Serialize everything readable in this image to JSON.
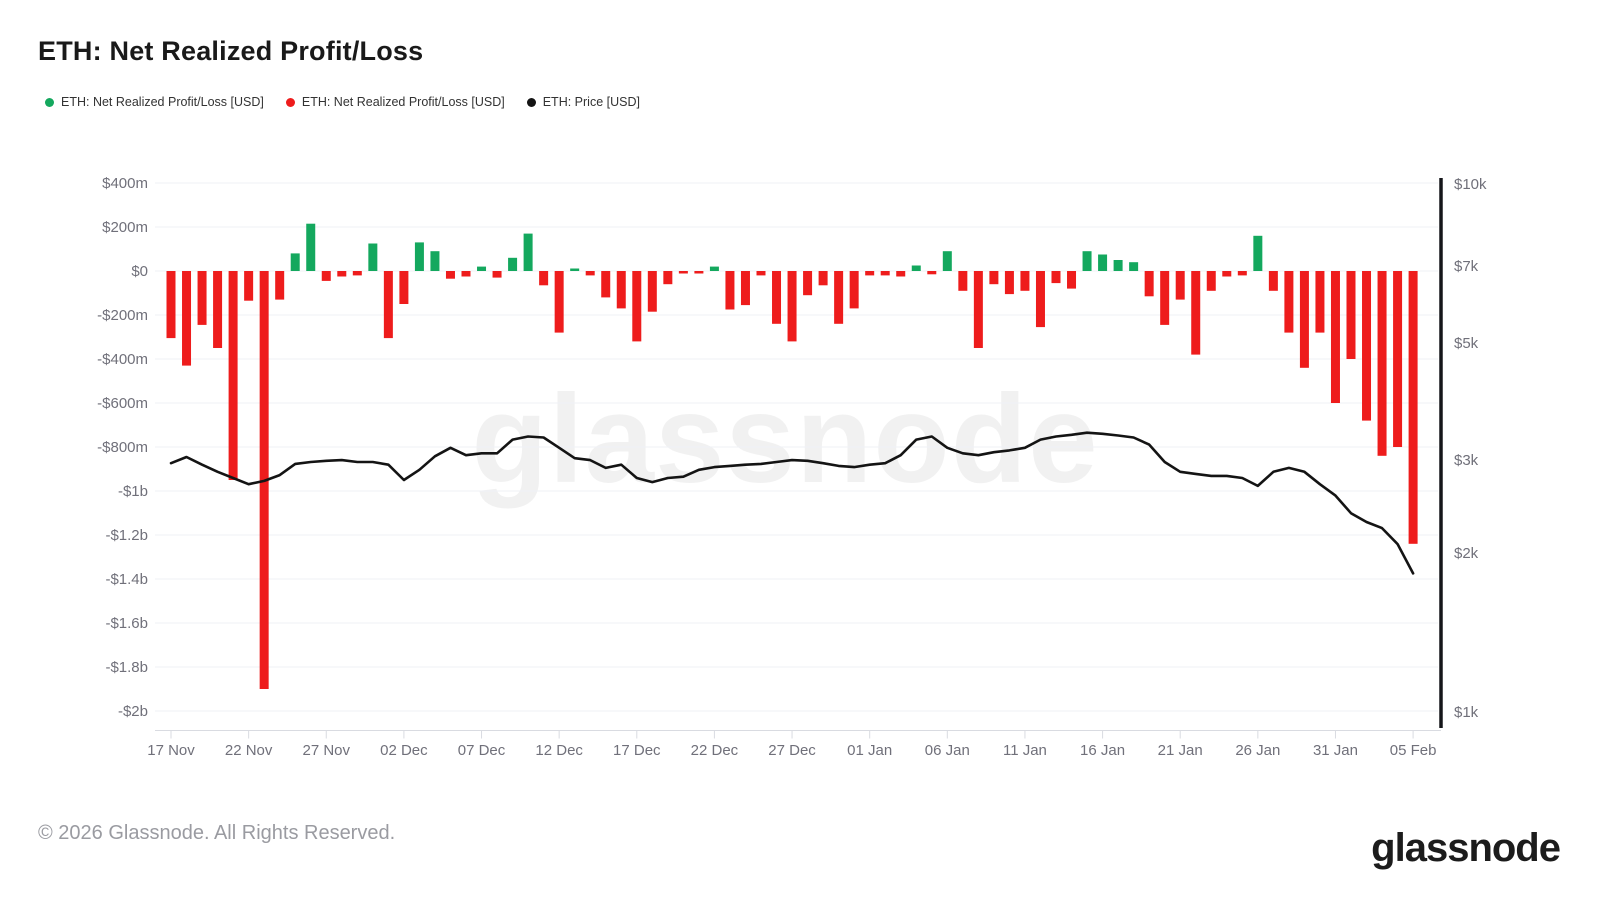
{
  "header": {
    "title": "ETH: Net Realized Profit/Loss"
  },
  "legend": [
    {
      "label": "ETH: Net Realized Profit/Loss [USD]",
      "color": "#14a85e"
    },
    {
      "label": "ETH: Net Realized Profit/Loss [USD]",
      "color": "#ee1c1c"
    },
    {
      "label": "ETH: Price [USD]",
      "color": "#141414"
    }
  ],
  "watermark": "glassnode",
  "footer": {
    "copyright": "© 2026 Glassnode. All Rights Reserved.",
    "logo": "glassnode"
  },
  "chart_data": {
    "type": "bar",
    "title": "ETH: Net Realized Profit/Loss",
    "x_tick_labels": [
      "17 Nov",
      "22 Nov",
      "27 Nov",
      "02 Dec",
      "07 Dec",
      "12 Dec",
      "17 Dec",
      "22 Dec",
      "27 Dec",
      "01 Jan",
      "06 Jan",
      "11 Jan",
      "16 Jan",
      "21 Jan",
      "26 Jan",
      "31 Jan",
      "05 Feb"
    ],
    "left_axis": {
      "title": "Net Realized Profit/Loss (USD)",
      "labels": [
        "$400m",
        "$200m",
        "$0",
        "-$200m",
        "-$400m",
        "-$600m",
        "-$800m",
        "-$1b",
        "-$1.2b",
        "-$1.4b",
        "-$1.6b",
        "-$1.8b",
        "-$2b"
      ],
      "values_millions": [
        400,
        200,
        0,
        -200,
        -400,
        -600,
        -800,
        -1000,
        -1200,
        -1400,
        -1600,
        -1800,
        -2000
      ],
      "scale": "linear"
    },
    "right_axis": {
      "title": "ETH Price (USD)",
      "labels": [
        "$10k",
        "$7k",
        "$5k",
        "$3k",
        "$2k",
        "$1k"
      ],
      "values_usd": [
        10000,
        7000,
        5000,
        3000,
        2000,
        1000
      ],
      "scale": "log"
    },
    "grid": "horizontal-only",
    "legend_position": "top-left",
    "categories": [
      "17 Nov",
      "18 Nov",
      "19 Nov",
      "20 Nov",
      "21 Nov",
      "22 Nov",
      "23 Nov",
      "24 Nov",
      "25 Nov",
      "26 Nov",
      "27 Nov",
      "28 Nov",
      "29 Nov",
      "30 Nov",
      "01 Dec",
      "02 Dec",
      "03 Dec",
      "04 Dec",
      "05 Dec",
      "06 Dec",
      "07 Dec",
      "08 Dec",
      "09 Dec",
      "10 Dec",
      "11 Dec",
      "12 Dec",
      "13 Dec",
      "14 Dec",
      "15 Dec",
      "16 Dec",
      "17 Dec",
      "18 Dec",
      "19 Dec",
      "20 Dec",
      "21 Dec",
      "22 Dec",
      "23 Dec",
      "24 Dec",
      "25 Dec",
      "26 Dec",
      "27 Dec",
      "28 Dec",
      "29 Dec",
      "30 Dec",
      "31 Dec",
      "01 Jan",
      "02 Jan",
      "03 Jan",
      "04 Jan",
      "05 Jan",
      "06 Jan",
      "07 Jan",
      "08 Jan",
      "09 Jan",
      "10 Jan",
      "11 Jan",
      "12 Jan",
      "13 Jan",
      "14 Jan",
      "15 Jan",
      "16 Jan",
      "17 Jan",
      "18 Jan",
      "19 Jan",
      "20 Jan",
      "21 Jan",
      "22 Jan",
      "23 Jan",
      "24 Jan",
      "25 Jan",
      "26 Jan",
      "27 Jan",
      "28 Jan",
      "29 Jan",
      "30 Jan",
      "31 Jan",
      "01 Feb",
      "02 Feb",
      "03 Feb",
      "04 Feb",
      "05 Feb"
    ],
    "series": [
      {
        "name": "ETH: Net Realized Profit/Loss [USD]",
        "type": "bar",
        "unit": "USD millions",
        "positive_color": "#14a85e",
        "negative_color": "#ee1c1c",
        "values": [
          -305,
          -430,
          -245,
          -350,
          -950,
          -135,
          -1900,
          -130,
          80,
          215,
          -45,
          -25,
          -20,
          125,
          -305,
          -150,
          130,
          90,
          -35,
          -25,
          20,
          -30,
          60,
          170,
          -65,
          -280,
          10,
          -20,
          -120,
          -170,
          -320,
          -185,
          -60,
          -10,
          -10,
          20,
          -175,
          -155,
          -20,
          -240,
          -320,
          -110,
          -65,
          -240,
          -170,
          -20,
          -20,
          -25,
          25,
          -15,
          90,
          -90,
          -350,
          -60,
          -105,
          -90,
          -255,
          -55,
          -80,
          90,
          75,
          50,
          40,
          -115,
          -245,
          -130,
          -380,
          -90,
          -25,
          -20,
          160,
          -90,
          -280,
          -440,
          -280,
          -600,
          -400,
          -680,
          -840,
          -800,
          -1240
        ]
      },
      {
        "name": "ETH: Price [USD]",
        "type": "line",
        "unit": "USD",
        "color": "#141414",
        "values": [
          2960,
          3040,
          2940,
          2850,
          2775,
          2700,
          2740,
          2810,
          2950,
          2975,
          2990,
          3000,
          2975,
          2975,
          2940,
          2750,
          2875,
          3050,
          3165,
          3065,
          3090,
          3090,
          3280,
          3325,
          3310,
          3165,
          3025,
          3000,
          2900,
          2940,
          2775,
          2725,
          2775,
          2790,
          2875,
          2910,
          2925,
          2940,
          2950,
          2975,
          3000,
          2990,
          2960,
          2925,
          2910,
          2940,
          2960,
          3065,
          3280,
          3325,
          3165,
          3090,
          3065,
          3105,
          3130,
          3165,
          3280,
          3325,
          3350,
          3380,
          3365,
          3340,
          3310,
          3210,
          2975,
          2850,
          2825,
          2800,
          2800,
          2775,
          2680,
          2850,
          2900,
          2850,
          2700,
          2570,
          2380,
          2290,
          2230,
          2080,
          1830
        ]
      }
    ],
    "colors": {
      "gridline": "#eff1f6",
      "axis_text": "#70707a",
      "x_axis_line": "#d9dbe1",
      "right_axis_bar": "#15161a"
    }
  }
}
